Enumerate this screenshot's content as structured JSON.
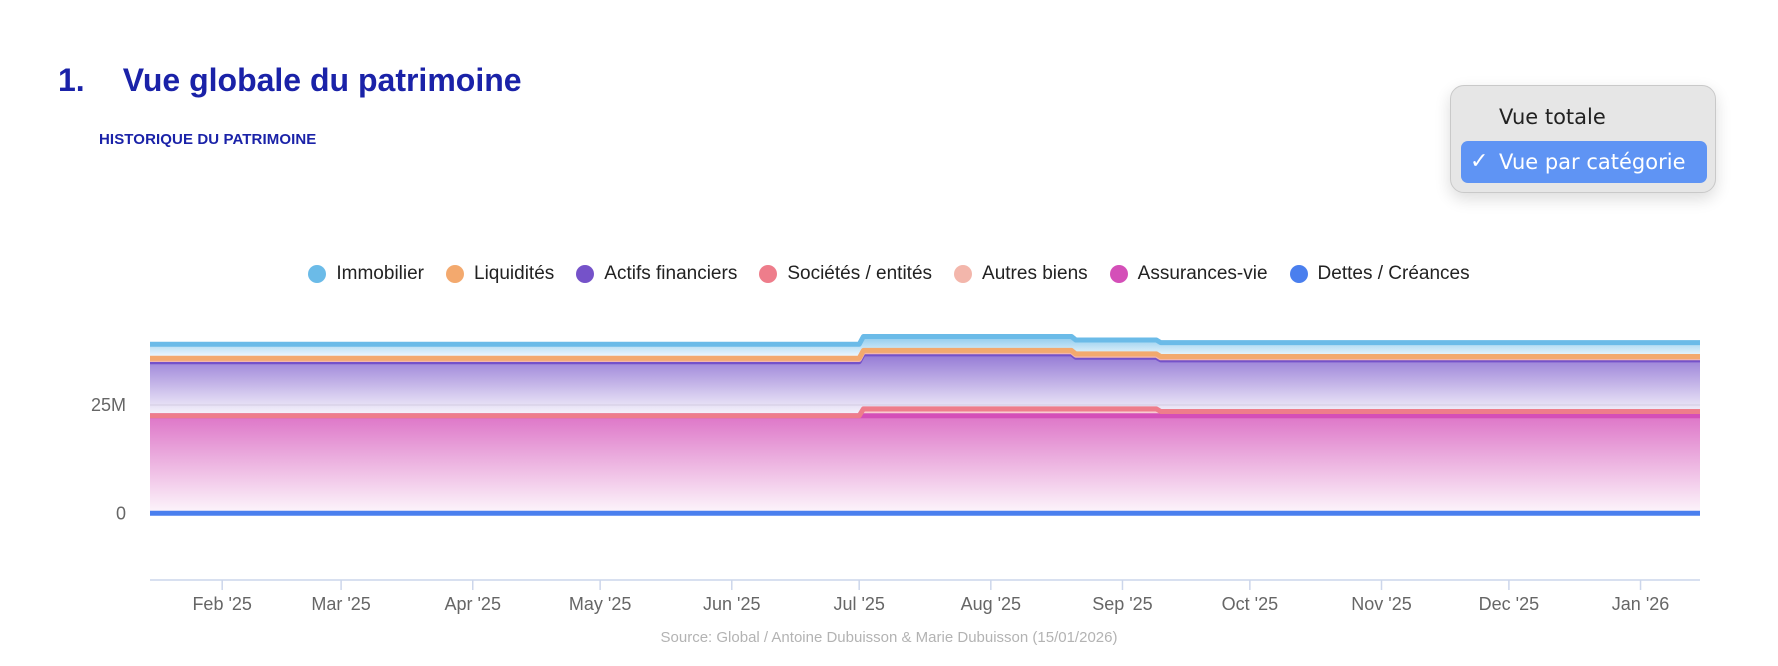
{
  "header": {
    "section_number": "1.",
    "section_title": "Vue globale du patrimoine",
    "subtitle": "HISTORIQUE DU PATRIMOINE"
  },
  "view_menu": {
    "items": [
      {
        "label": "Vue totale",
        "selected": false
      },
      {
        "label": "Vue par catégorie",
        "selected": true
      }
    ],
    "check_glyph": "✓"
  },
  "chart_data": {
    "type": "area",
    "stacked": true,
    "title": "",
    "xlabel": "",
    "ylabel": "",
    "x_range": [
      "2025-01-15",
      "2026-01-15"
    ],
    "x_ticks": [
      {
        "date": "2025-02-01",
        "label": "Feb '25"
      },
      {
        "date": "2025-03-01",
        "label": "Mar '25"
      },
      {
        "date": "2025-04-01",
        "label": "Apr '25"
      },
      {
        "date": "2025-05-01",
        "label": "May '25"
      },
      {
        "date": "2025-06-01",
        "label": "Jun '25"
      },
      {
        "date": "2025-07-01",
        "label": "Jul '25"
      },
      {
        "date": "2025-08-01",
        "label": "Aug '25"
      },
      {
        "date": "2025-09-01",
        "label": "Sep '25"
      },
      {
        "date": "2025-10-01",
        "label": "Oct '25"
      },
      {
        "date": "2025-11-01",
        "label": "Nov '25"
      },
      {
        "date": "2025-12-01",
        "label": "Dec '25"
      },
      {
        "date": "2026-01-01",
        "label": "Jan '26"
      }
    ],
    "y_ticks": [
      {
        "value": 0,
        "label": "0"
      },
      {
        "value": 25000000,
        "label": "25M"
      }
    ],
    "ylim": [
      -8000000,
      40000000
    ],
    "grid": {
      "horizontal": true,
      "vertical": false
    },
    "legend_position": "top-center",
    "x": [
      "2025-01-15",
      "2025-07-01",
      "2025-07-02",
      "2025-08-20",
      "2025-08-21",
      "2025-09-09",
      "2025-09-10",
      "2026-01-15"
    ],
    "series": [
      {
        "name": "Dettes / Créances",
        "color": "#4a7fee",
        "values": [
          0,
          0,
          0,
          0,
          0,
          0,
          0,
          0
        ]
      },
      {
        "name": "Assurances-vie",
        "color": "#d44fb8",
        "values": [
          22500000,
          22500000,
          22500000,
          22500000,
          22500000,
          22500000,
          22500000,
          22500000
        ]
      },
      {
        "name": "Sociétés / entités",
        "color": "#ee7d8b",
        "values": [
          0,
          0,
          1600000,
          1600000,
          1600000,
          1600000,
          1000000,
          1000000
        ]
      },
      {
        "name": "Actifs financiers",
        "color": "#7552c9",
        "values": [
          12500000,
          12500000,
          12700000,
          12700000,
          11900000,
          11900000,
          11900000,
          11900000
        ]
      },
      {
        "name": "Autres biens",
        "color": "#f3b6ab",
        "values": [
          500000,
          500000,
          500000,
          500000,
          500000,
          500000,
          500000,
          500000
        ]
      },
      {
        "name": "Liquidités",
        "color": "#f3a96e",
        "values": [
          300000,
          300000,
          300000,
          300000,
          300000,
          300000,
          300000,
          300000
        ]
      },
      {
        "name": "Immobilier",
        "color": "#6bbbe8",
        "values": [
          3200000,
          3200000,
          3200000,
          3200000,
          3200000,
          3200000,
          3200000,
          3200000
        ]
      }
    ]
  },
  "legend": [
    {
      "name": "Immobilier",
      "color": "#6bbbe8"
    },
    {
      "name": "Liquidités",
      "color": "#f3a96e"
    },
    {
      "name": "Actifs financiers",
      "color": "#7552c9"
    },
    {
      "name": "Sociétés / entités",
      "color": "#ee7d8b"
    },
    {
      "name": "Autres biens",
      "color": "#f3b6ab"
    },
    {
      "name": "Assurances-vie",
      "color": "#d44fb8"
    },
    {
      "name": "Dettes / Créances",
      "color": "#4a7fee"
    }
  ],
  "source": "Source: Global / Antoine Dubuisson & Marie Dubuisson (15/01/2026)"
}
